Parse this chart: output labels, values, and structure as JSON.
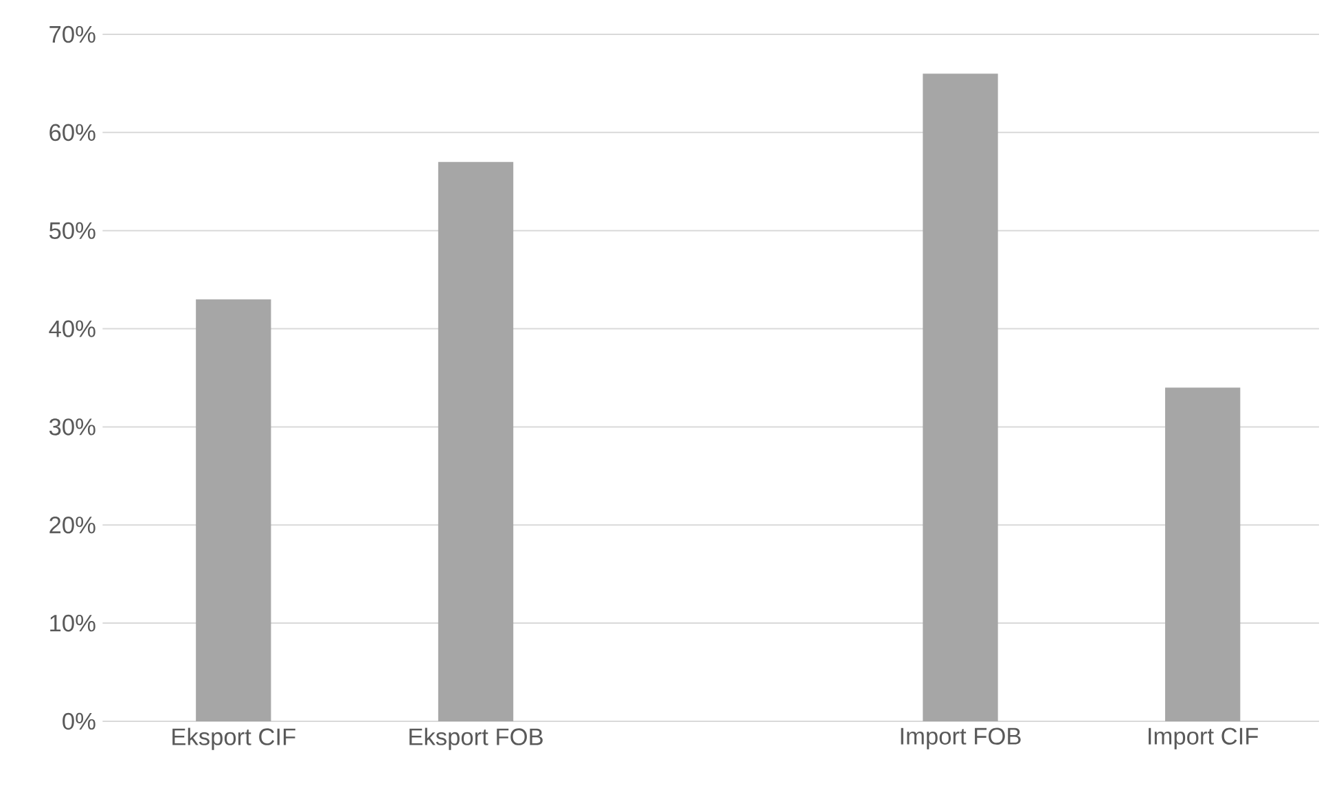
{
  "chart_data": {
    "type": "bar",
    "categories": [
      "Eksport CIF",
      "Eksport FOB",
      null,
      "Import FOB",
      "Import CIF"
    ],
    "values": [
      43,
      57,
      null,
      66,
      34
    ],
    "color": "#a6a6a6",
    "ylim": [
      0,
      70
    ],
    "yticks": [
      {
        "value": 0,
        "label": "0%"
      },
      {
        "value": 10,
        "label": "10%"
      },
      {
        "value": 20,
        "label": "20%"
      },
      {
        "value": 30,
        "label": "30%"
      },
      {
        "value": 40,
        "label": "40%"
      },
      {
        "value": 50,
        "label": "50%"
      },
      {
        "value": 60,
        "label": "60%"
      },
      {
        "value": 70,
        "label": "70%"
      }
    ],
    "grid": "y"
  }
}
